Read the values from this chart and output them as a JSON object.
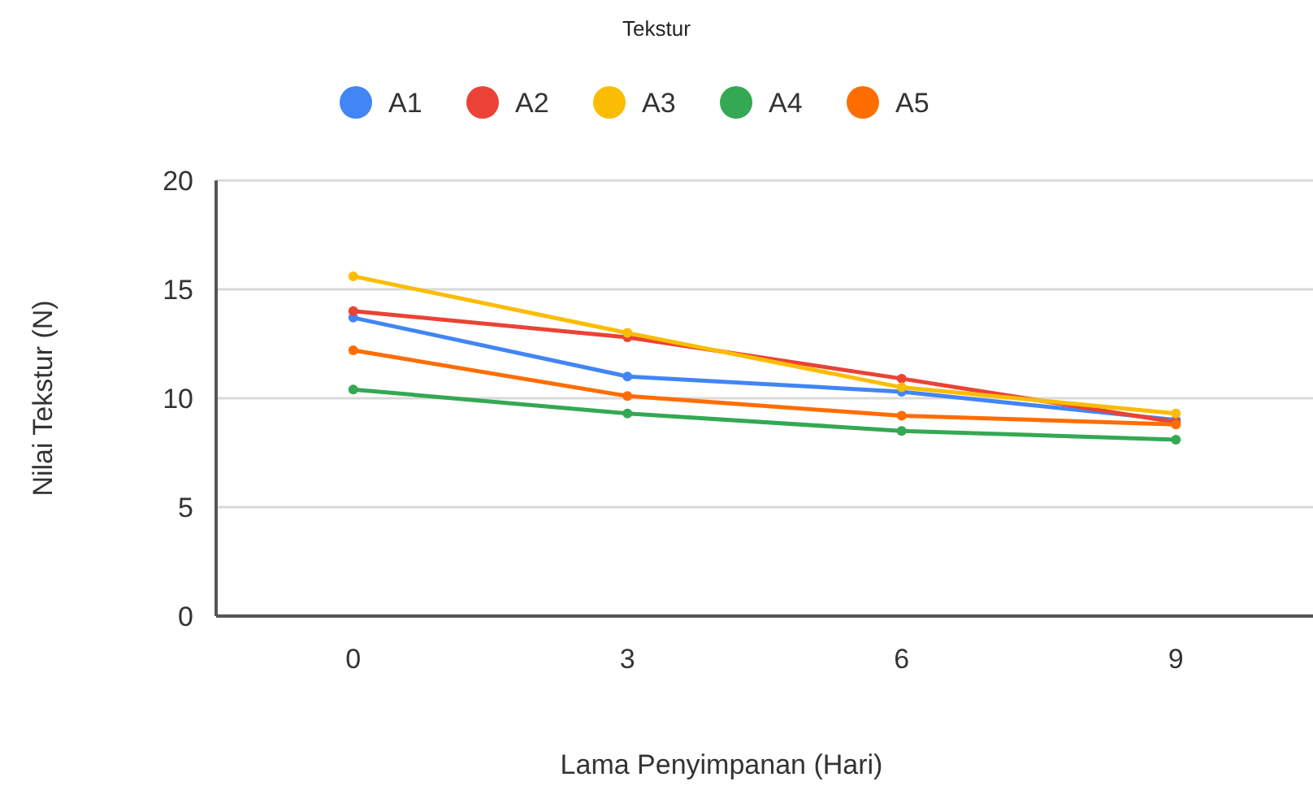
{
  "chart_data": {
    "type": "line",
    "title": "Tekstur",
    "xlabel": "Lama Penyimpanan (Hari)",
    "ylabel": "Nilai Tekstur (N)",
    "categories": [
      "0",
      "3",
      "6",
      "9"
    ],
    "series": [
      {
        "name": "A1",
        "color": "#4285f4",
        "values": [
          13.7,
          11.0,
          10.3,
          9.0
        ]
      },
      {
        "name": "A2",
        "color": "#ea4335",
        "values": [
          14.0,
          12.8,
          10.9,
          8.9
        ]
      },
      {
        "name": "A3",
        "color": "#fbbc04",
        "values": [
          15.6,
          13.0,
          10.5,
          9.3
        ]
      },
      {
        "name": "A4",
        "color": "#34a853",
        "values": [
          10.4,
          9.3,
          8.5,
          8.1
        ]
      },
      {
        "name": "A5",
        "color": "#ff6d01",
        "values": [
          12.2,
          10.1,
          9.2,
          8.8
        ]
      }
    ],
    "ylim": [
      0,
      20
    ],
    "yticks": [
      0,
      5,
      10,
      15,
      20
    ],
    "grid": "y",
    "legend": "top",
    "marker": "circle",
    "line_style": "solid"
  }
}
